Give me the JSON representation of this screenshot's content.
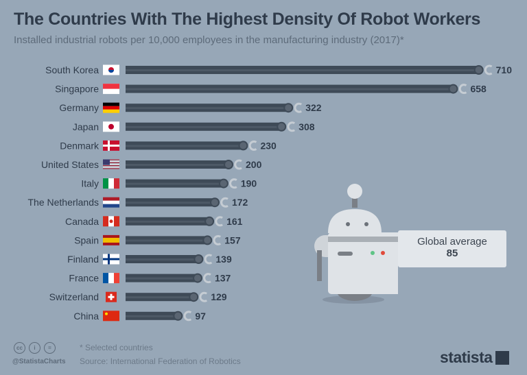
{
  "chart_data": {
    "type": "bar",
    "orientation": "horizontal",
    "title": "The Countries With The Highest Density Of Robot Workers",
    "subtitle": "Installed industrial robots per 10,000 employees in the manufacturing industry (2017)*",
    "categories": [
      "South Korea",
      "Singapore",
      "Germany",
      "Japan",
      "Denmark",
      "United States",
      "Italy",
      "The Netherlands",
      "Canada",
      "Spain",
      "Finland",
      "France",
      "Switzerland",
      "China"
    ],
    "flags": [
      "kr",
      "sg",
      "de",
      "jp",
      "dk",
      "us",
      "it",
      "nl",
      "ca",
      "es",
      "fi",
      "fr",
      "ch",
      "cn"
    ],
    "values": [
      710,
      658,
      322,
      308,
      230,
      200,
      190,
      172,
      161,
      157,
      139,
      137,
      129,
      97
    ],
    "xlim": [
      0,
      710
    ],
    "grid": false,
    "bar_color": "#3e4a57",
    "background_color": "#97a7b7",
    "annotation": {
      "label": "Global average",
      "value": "85"
    }
  },
  "footer": {
    "note": "* Selected countries",
    "source": "Source: International Federation of Robotics",
    "handle": "@StatistaCharts",
    "license_icons": [
      "cc",
      "by",
      "nd"
    ],
    "license_labels": [
      "cc",
      "i",
      "="
    ],
    "logo": "statista"
  }
}
